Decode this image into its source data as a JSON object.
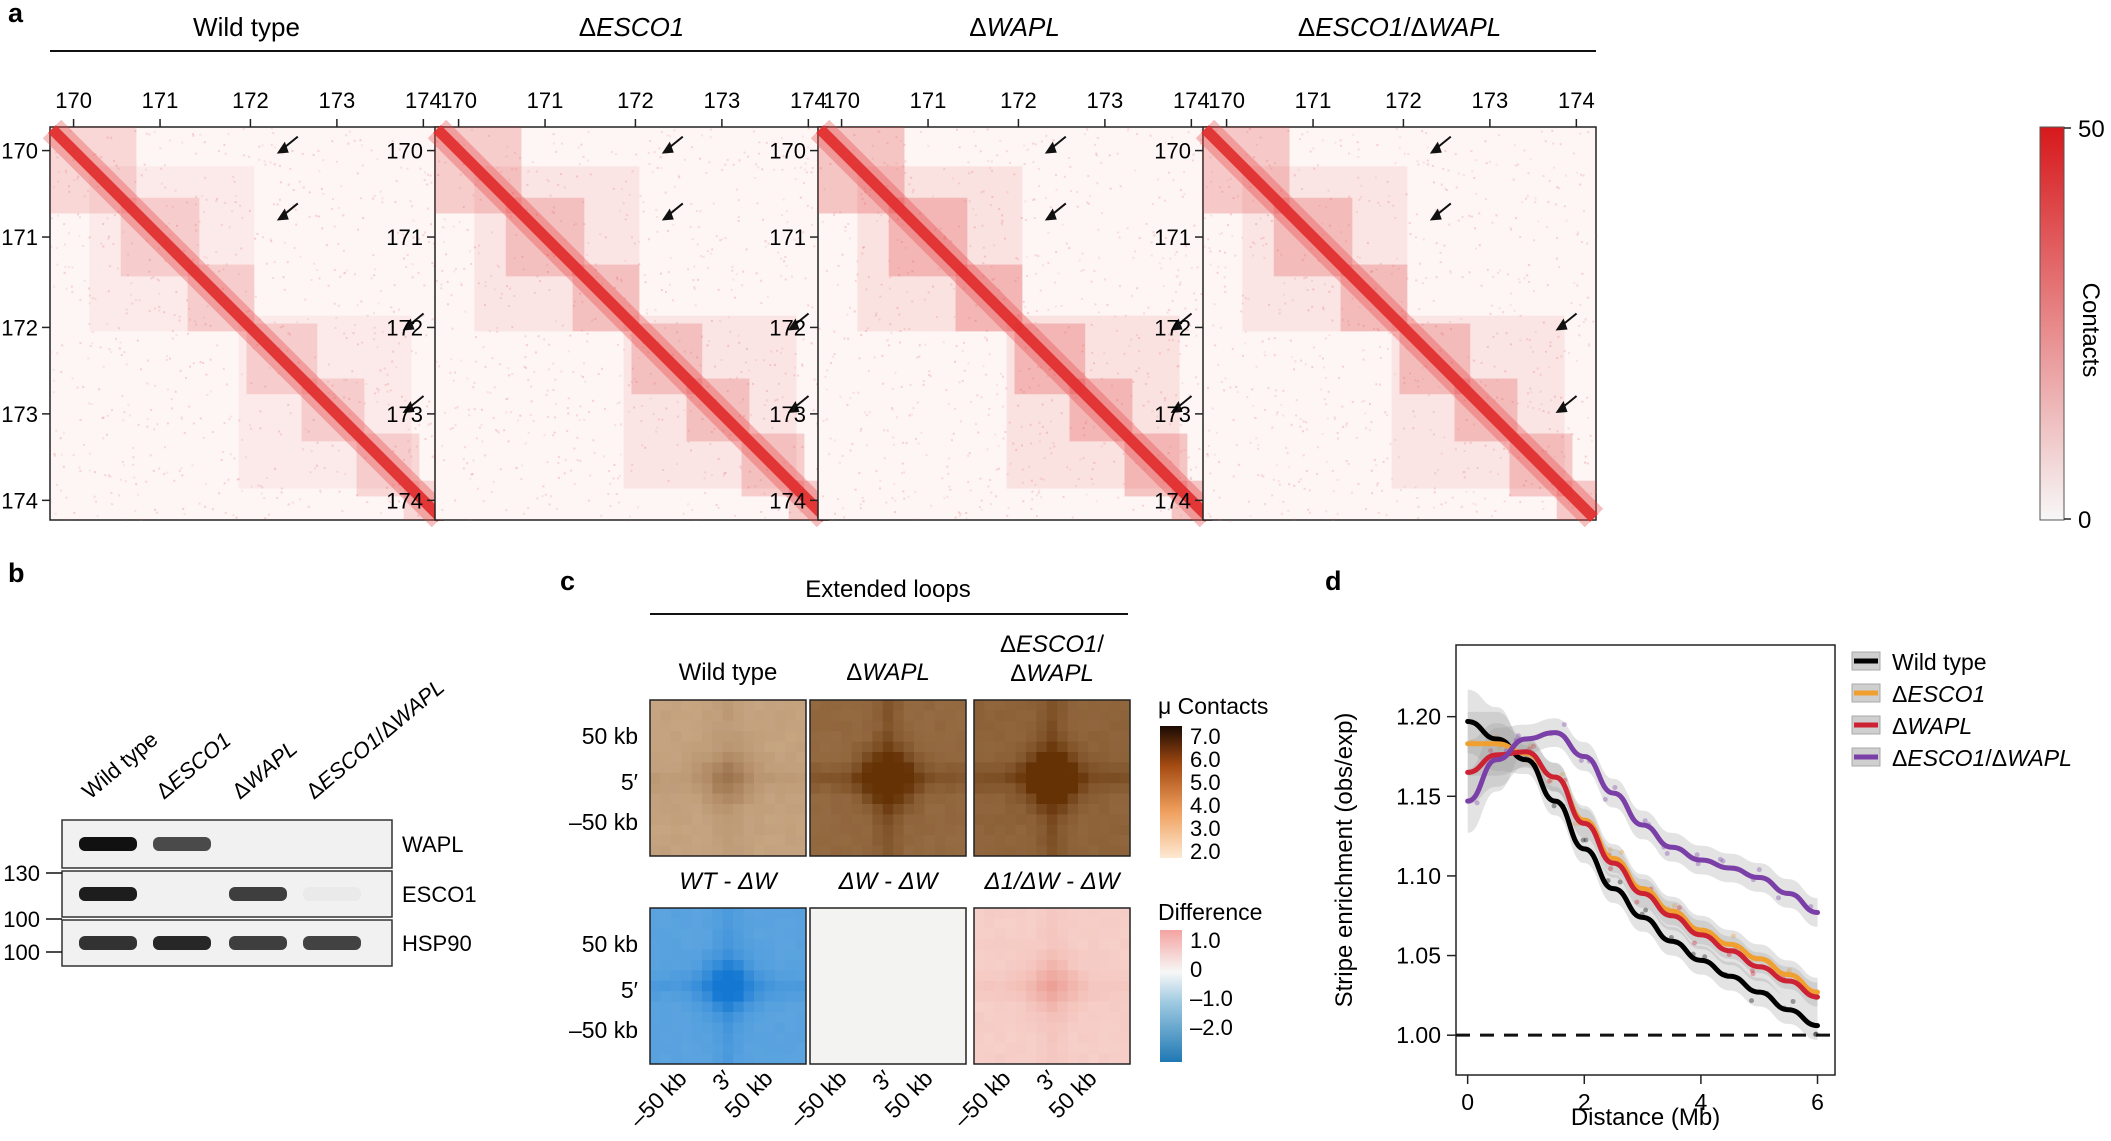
{
  "panel_labels": {
    "a": "a",
    "b": "b",
    "c": "c",
    "d": "d"
  },
  "panel_a": {
    "conditions": [
      {
        "label": "Wild type",
        "italic": false
      },
      {
        "label": "ΔESCO1",
        "italic": true
      },
      {
        "label": "ΔWAPL",
        "italic": true
      },
      {
        "label": "ΔESCO1/ΔWAPL",
        "italic": true
      }
    ],
    "axis_ticks": [
      "170",
      "171",
      "172",
      "173",
      "174"
    ],
    "colorbar": {
      "title": "Contacts",
      "max": "50",
      "min": "0",
      "colors": [
        "#f7f7f7",
        "#d7191c"
      ]
    }
  },
  "panel_b": {
    "lanes": [
      "Wild type",
      "ΔESCO1",
      "ΔWAPL",
      "ΔESCO1/ΔWAPL"
    ],
    "blots": [
      {
        "label": "WAPL",
        "intensity": [
          1.0,
          0.75,
          0.0,
          0.0
        ]
      },
      {
        "label": "ESCO1",
        "intensity": [
          0.95,
          0.0,
          0.8,
          0.03
        ]
      },
      {
        "label": "HSP90",
        "intensity": [
          0.85,
          0.9,
          0.8,
          0.78
        ]
      }
    ],
    "markers": [
      "130",
      "100",
      "100"
    ]
  },
  "panel_c": {
    "title": "Extended loops",
    "top_row": [
      "Wild type",
      "ΔWAPL",
      "ΔESCO1/\nΔWAPL"
    ],
    "bottom_row": [
      "WT - ΔW",
      "ΔW - ΔW",
      "Δ1/ΔW - ΔW"
    ],
    "y_labels": [
      "50 kb",
      "5′",
      "–50 kb"
    ],
    "x_labels": [
      "–50 kb",
      "3′",
      "50 kb"
    ],
    "peak_strength_top": [
      0.35,
      0.95,
      1.0
    ],
    "peak_strength_bottom": [
      -1.0,
      0.0,
      0.45
    ],
    "legend_top": {
      "title": "μ Contacts",
      "ticks": [
        "7.0",
        "6.0",
        "5.0",
        "4.0",
        "3.0",
        "2.0"
      ]
    },
    "legend_bottom": {
      "title": "Difference",
      "ticks": [
        "1.0",
        "0",
        "–1.0",
        "–2.0"
      ]
    }
  },
  "panel_d": {
    "chart_data": {
      "type": "line",
      "xlabel": "Distance (Mb)",
      "ylabel": "Stripe enrichment (obs/exp)",
      "xlim": [
        -0.2,
        6.3
      ],
      "ylim": [
        0.975,
        1.245
      ],
      "x_ticks": [
        "0",
        "2",
        "4",
        "6"
      ],
      "y_ticks": [
        "1.00",
        "1.05",
        "1.10",
        "1.15",
        "1.20"
      ],
      "reference_line": 1.0,
      "x": [
        0.0,
        0.5,
        1.0,
        1.5,
        2.0,
        2.5,
        3.0,
        3.5,
        4.0,
        4.5,
        5.0,
        5.5,
        6.0
      ],
      "series": [
        {
          "name": "Wild type",
          "italic": false,
          "color": "#000000",
          "values": [
            1.197,
            1.186,
            1.173,
            1.147,
            1.117,
            1.092,
            1.074,
            1.059,
            1.047,
            1.037,
            1.027,
            1.016,
            1.006
          ]
        },
        {
          "name": "ΔESCO1",
          "italic": true,
          "color": "#f0a030",
          "values": [
            1.183,
            1.183,
            1.177,
            1.162,
            1.135,
            1.111,
            1.092,
            1.078,
            1.066,
            1.057,
            1.048,
            1.038,
            1.027
          ]
        },
        {
          "name": "ΔWAPL",
          "italic": true,
          "color": "#cc2233",
          "values": [
            1.165,
            1.176,
            1.178,
            1.162,
            1.133,
            1.108,
            1.089,
            1.075,
            1.063,
            1.053,
            1.043,
            1.034,
            1.024
          ]
        },
        {
          "name": "ΔESCO1/ΔWAPL",
          "italic": true,
          "color": "#7b3fa8",
          "values": [
            1.147,
            1.173,
            1.186,
            1.19,
            1.175,
            1.152,
            1.132,
            1.118,
            1.11,
            1.105,
            1.099,
            1.089,
            1.077
          ]
        }
      ]
    }
  }
}
